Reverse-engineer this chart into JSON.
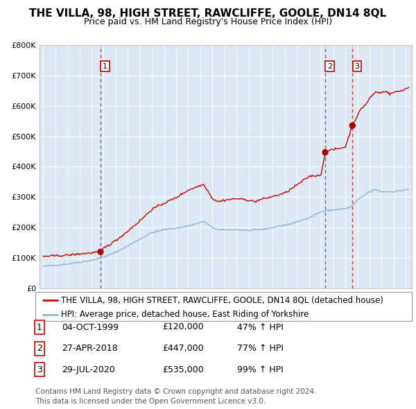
{
  "title": "THE VILLA, 98, HIGH STREET, RAWCLIFFE, GOOLE, DN14 8QL",
  "subtitle": "Price paid vs. HM Land Registry's House Price Index (HPI)",
  "ylim": [
    0,
    800000
  ],
  "yticks": [
    0,
    100000,
    200000,
    300000,
    400000,
    500000,
    600000,
    700000,
    800000
  ],
  "ytick_labels": [
    "£0",
    "£100K",
    "£200K",
    "£300K",
    "£400K",
    "£500K",
    "£600K",
    "£700K",
    "£800K"
  ],
  "xlim_start": 1994.7,
  "xlim_end": 2025.5,
  "plot_bg_color": "#dce9f5",
  "grid_color": "#ffffff",
  "red_line_color": "#cc0000",
  "blue_line_color": "#8ab4d4",
  "dashed_line_color": "#cc3333",
  "marker_color": "#aa0000",
  "sale_points": [
    {
      "label": "1",
      "date": 1999.75,
      "price": 120000
    },
    {
      "label": "2",
      "date": 2018.33,
      "price": 447000
    },
    {
      "label": "3",
      "date": 2020.58,
      "price": 535000
    }
  ],
  "legend_entries": [
    "THE VILLA, 98, HIGH STREET, RAWCLIFFE, GOOLE, DN14 8QL (detached house)",
    "HPI: Average price, detached house, East Riding of Yorkshire"
  ],
  "table_rows": [
    {
      "num": "1",
      "date": "04-OCT-1999",
      "price": "£120,000",
      "hpi": "47% ↑ HPI"
    },
    {
      "num": "2",
      "date": "27-APR-2018",
      "price": "£447,000",
      "hpi": "77% ↑ HPI"
    },
    {
      "num": "3",
      "date": "29-JUL-2020",
      "price": "£535,000",
      "hpi": "99% ↑ HPI"
    }
  ],
  "footnote": "Contains HM Land Registry data © Crown copyright and database right 2024.\nThis data is licensed under the Open Government Licence v3.0.",
  "title_fontsize": 11,
  "subtitle_fontsize": 9,
  "axis_fontsize": 8,
  "legend_fontsize": 8.5,
  "table_fontsize": 9,
  "footnote_fontsize": 7.5
}
